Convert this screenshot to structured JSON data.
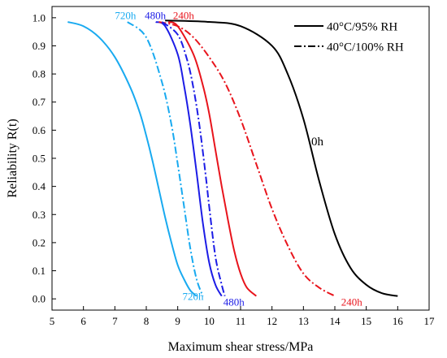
{
  "chart_data": {
    "type": "line",
    "xlabel": "Maximum shear stress/MPa",
    "ylabel": "Reliability R(t)",
    "xlim": [
      5,
      17
    ],
    "ylim": [
      -0.04,
      1.04
    ],
    "x_ticks": [
      "5",
      "6",
      "7",
      "8",
      "9",
      "10",
      "11",
      "12",
      "13",
      "14",
      "15",
      "16",
      "17"
    ],
    "y_ticks": [
      "0.0",
      "0.1",
      "0.2",
      "0.3",
      "0.4",
      "0.5",
      "0.6",
      "0.7",
      "0.8",
      "0.9",
      "1.0"
    ],
    "grid": false,
    "legend_position": "top-right",
    "legend": [
      {
        "label": "40°C/95% RH",
        "style": "solid"
      },
      {
        "label": "40°C/100% RH",
        "style": "dashdot"
      }
    ],
    "series": [
      {
        "condition": "40°C/95% RH",
        "age": "0h",
        "color": "#000000",
        "style": "solid",
        "x": [
          8.6,
          10,
          11,
          12,
          12.5,
          13,
          13.5,
          14,
          14.5,
          15,
          15.5,
          16
        ],
        "y": [
          0.99,
          0.985,
          0.97,
          0.9,
          0.8,
          0.64,
          0.42,
          0.23,
          0.11,
          0.05,
          0.02,
          0.01
        ]
      },
      {
        "condition": "40°C/95% RH",
        "age": "240h",
        "color": "#e8141c",
        "style": "solid",
        "x": [
          8.7,
          9,
          9.5,
          9.8,
          10,
          10.2,
          10.4,
          10.6,
          10.8,
          11,
          11.2,
          11.5
        ],
        "y": [
          0.985,
          0.97,
          0.87,
          0.76,
          0.66,
          0.53,
          0.4,
          0.28,
          0.17,
          0.09,
          0.04,
          0.01
        ]
      },
      {
        "condition": "40°C/95% RH",
        "age": "480h",
        "color": "#1c1ce6",
        "style": "solid",
        "x": [
          8.3,
          8.6,
          9,
          9.2,
          9.4,
          9.6,
          9.8,
          10,
          10.2,
          10.4
        ],
        "y": [
          0.985,
          0.97,
          0.87,
          0.76,
          0.62,
          0.45,
          0.27,
          0.13,
          0.05,
          0.01
        ]
      },
      {
        "condition": "40°C/95% RH",
        "age": "720h",
        "color": "#19aaf0",
        "style": "solid",
        "x": [
          5.5,
          6,
          6.5,
          7,
          7.5,
          7.8,
          8,
          8.2,
          8.4,
          8.6,
          8.8,
          9,
          9.2,
          9.4,
          9.6
        ],
        "y": [
          0.985,
          0.97,
          0.93,
          0.86,
          0.75,
          0.66,
          0.58,
          0.49,
          0.39,
          0.29,
          0.2,
          0.12,
          0.07,
          0.03,
          0.01
        ]
      },
      {
        "condition": "40°C/100% RH",
        "age": "240h",
        "color": "#e8141c",
        "style": "dashdot",
        "x": [
          8.4,
          9,
          9.5,
          10,
          10.5,
          11,
          11.5,
          12,
          12.5,
          13,
          13.5,
          14
        ],
        "y": [
          0.985,
          0.97,
          0.93,
          0.86,
          0.77,
          0.64,
          0.48,
          0.32,
          0.19,
          0.09,
          0.04,
          0.01
        ]
      },
      {
        "condition": "40°C/100% RH",
        "age": "480h",
        "color": "#1c1ce6",
        "style": "dashdot",
        "x": [
          8.5,
          9,
          9.3,
          9.5,
          9.7,
          9.9,
          10,
          10.2,
          10.4,
          10.5
        ],
        "y": [
          0.985,
          0.94,
          0.85,
          0.75,
          0.61,
          0.43,
          0.33,
          0.15,
          0.05,
          0.01
        ]
      },
      {
        "condition": "40°C/100% RH",
        "age": "720h",
        "color": "#19aaf0",
        "style": "dashdot",
        "x": [
          7.4,
          8,
          8.5,
          8.8,
          9,
          9.2,
          9.4,
          9.6,
          9.8
        ],
        "y": [
          0.985,
          0.93,
          0.77,
          0.62,
          0.48,
          0.33,
          0.18,
          0.07,
          0.01
        ]
      }
    ],
    "labels": [
      {
        "text": "720h",
        "color": "#19aaf0",
        "x": 7.0,
        "y": 1.01
      },
      {
        "text": "480h",
        "color": "#1c1ce6",
        "x": 7.95,
        "y": 1.01
      },
      {
        "text": "240h",
        "color": "#e8141c",
        "x": 8.85,
        "y": 1.01
      },
      {
        "text": "0h",
        "color": "#000000",
        "x": 13.25,
        "y": 0.56
      },
      {
        "text": "720h",
        "color": "#19aaf0",
        "x": 9.15,
        "y": 0.01
      },
      {
        "text": "480h",
        "color": "#1c1ce6",
        "x": 10.45,
        "y": -0.01
      },
      {
        "text": "240h",
        "color": "#e8141c",
        "x": 14.2,
        "y": -0.01
      }
    ]
  }
}
